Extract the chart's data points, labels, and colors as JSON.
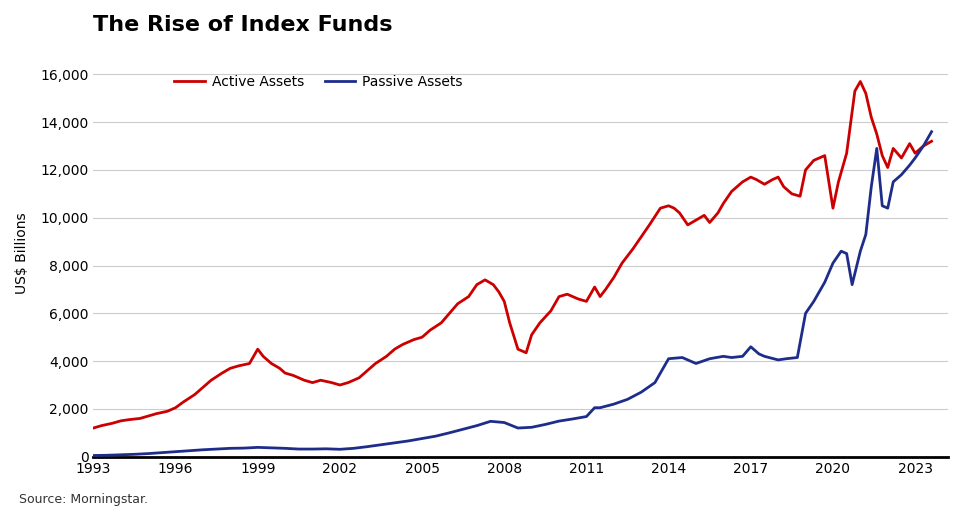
{
  "title": "The Rise of Index Funds",
  "ylabel": "US$ Billions",
  "source": "Source: Morningstar.",
  "legend": [
    "Active Assets",
    "Passive Assets"
  ],
  "line_colors": [
    "#cc0000",
    "#1f2d8a"
  ],
  "line_width": 2.0,
  "ylim": [
    0,
    17000
  ],
  "yticks": [
    0,
    2000,
    4000,
    6000,
    8000,
    10000,
    12000,
    14000,
    16000
  ],
  "xticks": [
    1993,
    1996,
    1999,
    2002,
    2005,
    2008,
    2011,
    2014,
    2017,
    2020,
    2023
  ],
  "background_color": "#ffffff",
  "grid_color": "#cccccc",
  "active_x": [
    1993.0,
    1993.3,
    1993.7,
    1994.0,
    1994.3,
    1994.7,
    1995.0,
    1995.3,
    1995.7,
    1996.0,
    1996.3,
    1996.7,
    1997.0,
    1997.3,
    1997.7,
    1998.0,
    1998.3,
    1998.7,
    1999.0,
    1999.2,
    1999.5,
    1999.8,
    2000.0,
    2000.3,
    2000.7,
    2001.0,
    2001.3,
    2001.7,
    2002.0,
    2002.3,
    2002.7,
    2003.0,
    2003.3,
    2003.7,
    2004.0,
    2004.3,
    2004.7,
    2005.0,
    2005.3,
    2005.7,
    2006.0,
    2006.3,
    2006.7,
    2007.0,
    2007.3,
    2007.6,
    2007.8,
    2008.0,
    2008.2,
    2008.5,
    2008.8,
    2009.0,
    2009.3,
    2009.7,
    2010.0,
    2010.3,
    2010.7,
    2011.0,
    2011.3,
    2011.5,
    2011.7,
    2012.0,
    2012.3,
    2012.7,
    2013.0,
    2013.3,
    2013.7,
    2014.0,
    2014.2,
    2014.4,
    2014.7,
    2015.0,
    2015.3,
    2015.5,
    2015.8,
    2016.0,
    2016.3,
    2016.7,
    2017.0,
    2017.2,
    2017.5,
    2017.8,
    2018.0,
    2018.2,
    2018.5,
    2018.8,
    2019.0,
    2019.3,
    2019.7,
    2020.0,
    2020.2,
    2020.5,
    2020.8,
    2021.0,
    2021.2,
    2021.4,
    2021.6,
    2021.8,
    2022.0,
    2022.2,
    2022.5,
    2022.8,
    2023.0,
    2023.3,
    2023.6
  ],
  "active_y": [
    1200,
    1300,
    1400,
    1500,
    1550,
    1600,
    1700,
    1800,
    1900,
    2050,
    2300,
    2600,
    2900,
    3200,
    3500,
    3700,
    3800,
    3900,
    4500,
    4200,
    3900,
    3700,
    3500,
    3400,
    3200,
    3100,
    3200,
    3100,
    3000,
    3100,
    3300,
    3600,
    3900,
    4200,
    4500,
    4700,
    4900,
    5000,
    5300,
    5600,
    6000,
    6400,
    6700,
    7200,
    7400,
    7200,
    6900,
    6500,
    5600,
    4500,
    4350,
    5100,
    5600,
    6100,
    6700,
    6800,
    6600,
    6500,
    7100,
    6700,
    7000,
    7500,
    8100,
    8700,
    9200,
    9700,
    10400,
    10500,
    10400,
    10200,
    9700,
    9900,
    10100,
    9800,
    10200,
    10600,
    11100,
    11500,
    11700,
    11600,
    11400,
    11600,
    11700,
    11300,
    11000,
    10900,
    12000,
    12400,
    12600,
    10400,
    11500,
    12700,
    15300,
    15700,
    15200,
    14200,
    13500,
    12600,
    12100,
    12900,
    12500,
    13100,
    12700,
    13000,
    13200
  ],
  "passive_x": [
    1993.0,
    1993.5,
    1994.0,
    1994.5,
    1995.0,
    1995.5,
    1996.0,
    1996.5,
    1997.0,
    1997.5,
    1998.0,
    1998.5,
    1999.0,
    1999.5,
    2000.0,
    2000.5,
    2001.0,
    2001.5,
    2002.0,
    2002.5,
    2003.0,
    2003.5,
    2004.0,
    2004.5,
    2005.0,
    2005.5,
    2006.0,
    2006.5,
    2007.0,
    2007.5,
    2008.0,
    2008.5,
    2009.0,
    2009.5,
    2010.0,
    2010.5,
    2011.0,
    2011.3,
    2011.5,
    2012.0,
    2012.5,
    2013.0,
    2013.5,
    2014.0,
    2014.5,
    2015.0,
    2015.5,
    2016.0,
    2016.3,
    2016.7,
    2017.0,
    2017.3,
    2017.5,
    2018.0,
    2018.3,
    2018.7,
    2019.0,
    2019.3,
    2019.7,
    2020.0,
    2020.3,
    2020.5,
    2020.7,
    2021.0,
    2021.2,
    2021.4,
    2021.6,
    2021.8,
    2022.0,
    2022.2,
    2022.5,
    2022.8,
    2023.0,
    2023.3,
    2023.6
  ],
  "passive_y": [
    50,
    60,
    80,
    100,
    130,
    170,
    210,
    250,
    290,
    320,
    350,
    360,
    390,
    370,
    350,
    320,
    320,
    330,
    310,
    350,
    420,
    500,
    580,
    660,
    760,
    860,
    1000,
    1150,
    1300,
    1480,
    1430,
    1200,
    1230,
    1350,
    1490,
    1580,
    1680,
    2050,
    2050,
    2200,
    2400,
    2700,
    3100,
    4100,
    4150,
    3900,
    4100,
    4200,
    4150,
    4200,
    4600,
    4300,
    4200,
    4050,
    4100,
    4150,
    6000,
    6500,
    7300,
    8100,
    8600,
    8500,
    7200,
    8600,
    9300,
    11300,
    12900,
    10500,
    10400,
    11500,
    11800,
    12200,
    12500,
    13000,
    13600
  ]
}
